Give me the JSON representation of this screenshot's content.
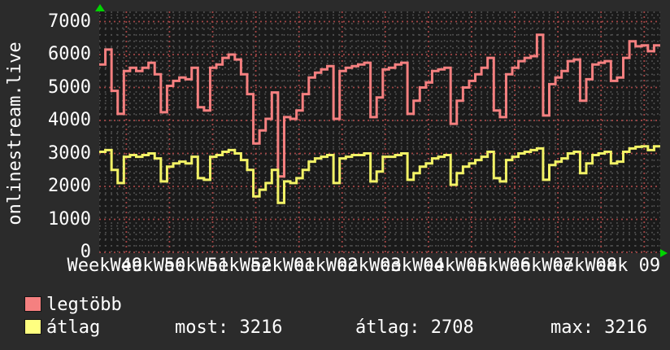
{
  "site": {
    "name": "onlinestream.live"
  },
  "colors": {
    "background": "#2b2b2b",
    "plot_background": "#1a1a1a",
    "grid_minor": "#4d4d4d",
    "grid_major": "#a04545",
    "text": "#ffffff",
    "axis_arrow": "#00d400",
    "series_max": "#f58080",
    "series_avg": "#f2f266"
  },
  "icons": {
    "up_arrow": "y-axis-arrow-icon",
    "right_arrow": "x-axis-arrow-icon"
  },
  "chart_data": {
    "type": "line",
    "style": "rrdtool step line graph, weekly x grid",
    "title": "",
    "ylabel": "onlinestream.live",
    "xlabel": "",
    "ylim": [
      0,
      7300
    ],
    "y_ticks": [
      0,
      1000,
      2000,
      3000,
      4000,
      5000,
      6000,
      7000
    ],
    "y_minor_step": 200,
    "x_tick_labels": [
      "Week 49",
      "Week 50",
      "Week 51",
      "Week 52",
      "Week 01",
      "Week 02",
      "Week 03",
      "Week 04",
      "Week 05",
      "Week 06",
      "Week 07",
      "Week 08",
      "Week 09"
    ],
    "x_unit": "day",
    "days": 91,
    "week_start_day_offset": 4.4,
    "grid": "minor gray dotted daily/200, major red dotted weekly/1000",
    "legend_position": "bottom",
    "series": [
      {
        "name": "legtöbb",
        "color": "#f58080",
        "values": [
          5700,
          6150,
          4900,
          4200,
          5500,
          5600,
          5500,
          5600,
          5750,
          5400,
          4250,
          5050,
          5200,
          5300,
          5250,
          5600,
          4400,
          4300,
          5600,
          5700,
          5900,
          6000,
          5850,
          5400,
          4800,
          3300,
          3700,
          4050,
          4850,
          2300,
          4100,
          4050,
          4300,
          4800,
          5300,
          5450,
          5550,
          5650,
          4050,
          5500,
          5600,
          5650,
          5700,
          5750,
          4100,
          4700,
          5550,
          5600,
          5700,
          5750,
          4200,
          4600,
          5000,
          5150,
          5500,
          5550,
          5600,
          3900,
          4600,
          5000,
          5200,
          5400,
          5600,
          5900,
          4300,
          4100,
          5400,
          5600,
          5800,
          5900,
          5950,
          6600,
          4150,
          5100,
          5300,
          5500,
          5800,
          5850,
          4600,
          5250,
          5700,
          5750,
          5800,
          5200,
          5300,
          5900,
          6400,
          6250,
          6280,
          6100,
          6280
        ]
      },
      {
        "name": "átlag",
        "color": "#f2f266",
        "values": [
          3050,
          3100,
          2500,
          2100,
          2900,
          2950,
          2900,
          2950,
          3000,
          2850,
          2150,
          2600,
          2700,
          2750,
          2700,
          2900,
          2250,
          2200,
          2900,
          2950,
          3050,
          3100,
          3000,
          2800,
          2500,
          1700,
          1900,
          2100,
          2500,
          1500,
          2150,
          2100,
          2250,
          2500,
          2750,
          2850,
          2900,
          2950,
          2100,
          2850,
          2900,
          2950,
          2950,
          3000,
          2150,
          2450,
          2900,
          2900,
          2950,
          3000,
          2200,
          2400,
          2600,
          2700,
          2850,
          2900,
          2950,
          2050,
          2400,
          2600,
          2700,
          2800,
          2900,
          3050,
          2250,
          2150,
          2800,
          2900,
          3000,
          3050,
          3100,
          3150,
          2200,
          2650,
          2750,
          2850,
          3000,
          3050,
          2400,
          2700,
          2950,
          3000,
          3050,
          2700,
          2750,
          3050,
          3150,
          3200,
          3216,
          3100,
          3216
        ]
      }
    ]
  },
  "legend": {
    "items": [
      {
        "label": "legtöbb",
        "color": "#f58080"
      },
      {
        "label": "átlag",
        "color": "#ffff80"
      }
    ],
    "stats": {
      "most": {
        "label": "most: ",
        "value": "3216"
      },
      "atlag": {
        "label": "átlag: ",
        "value": "2708"
      },
      "max": {
        "label": "max: ",
        "value": "3216"
      }
    }
  }
}
